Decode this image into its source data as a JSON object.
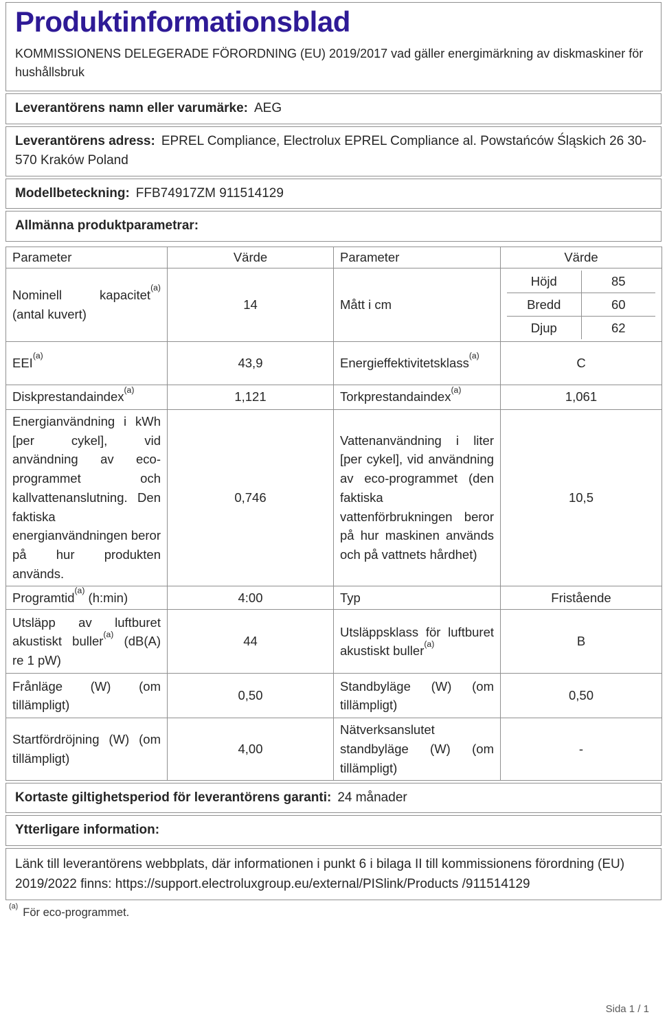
{
  "colors": {
    "title_accent": "#2e1a96",
    "body_text": "#262626",
    "table_border": "#8f8f8f",
    "footer_text": "#595959"
  },
  "header": {
    "title": "Produktinformationsblad",
    "subtitle": "KOMMISSIONENS DELEGERADE FÖRORDNING (EU) 2019/2017 vad gäller energimärkning av diskmaskiner för hushållsbruk"
  },
  "supplier": {
    "name_label": "Leverantörens namn eller varumärke:",
    "name_value": "AEG",
    "address_label": "Leverantörens adress:",
    "address_value": "EPREL Compliance, Electrolux EPREL Compliance al. Powstańców Śląskich 26 30-570 Kraków Poland",
    "model_label": "Modellbeteckning:",
    "model_value": "FFB74917ZM 911514129"
  },
  "general_params_label": "Allmänna produktparametrar:",
  "param_table": {
    "headers": [
      "Parameter",
      "Värde",
      "Parameter",
      "Värde"
    ],
    "rows": [
      {
        "p1": "Nominell kapacitet",
        "p1_sup": "(a)",
        "p1_post": " (antal kuvert)",
        "v1": "14",
        "p2": "Mått i cm",
        "dims": [
          {
            "label": "Höjd",
            "value": "85"
          },
          {
            "label": "Bredd",
            "value": "60"
          },
          {
            "label": "Djup",
            "value": "62"
          }
        ]
      },
      {
        "p1": "EEI",
        "p1_sup": "(a)",
        "v1": "43,9",
        "p2": "Energieffektivitetsklass",
        "p2_sup": "(a)",
        "v2": "C"
      },
      {
        "p1": "Diskprestandaindex",
        "p1_sup": "(a)",
        "v1": "1,121",
        "p2": "Torkprestandaindex",
        "p2_sup": "(a)",
        "v2": "1,061"
      },
      {
        "p1": "Energianvändning i kWh [per cykel], vid användning av eco-programmet och kallvattenanslutning. Den faktiska energianvändningen beror på hur produkten används.",
        "v1": "0,746",
        "p2": "Vattenanvändning i liter [per cykel], vid användning av eco-programmet (den faktiska vattenförbrukningen beror på hur maskinen används och på vattnets hårdhet)",
        "v2": "10,5"
      },
      {
        "p1": "Programtid",
        "p1_sup": "(a)",
        "p1_post": " (h:min)",
        "v1": "4:00",
        "p2": "Typ",
        "v2": "Fristående"
      },
      {
        "p1": "Utsläpp av luftburet akustiskt buller",
        "p1_sup": "(a)",
        "p1_post": " (dB(A) re 1 pW)",
        "v1": "44",
        "p2": "Utsläppsklass för luftburet akustiskt buller",
        "p2_sup": "(a)",
        "v2": "B"
      },
      {
        "p1": "Frånläge (W) (om tillämpligt)",
        "v1": "0,50",
        "p2": "Standbyläge (W) (om tillämpligt)",
        "v2": "0,50"
      },
      {
        "p1": "Startfördröjning (W) (om tillämpligt)",
        "v1": "4,00",
        "p2": "Nätverksanslutet standbyläge (W) (om tillämpligt)",
        "v2": "-"
      }
    ]
  },
  "warranty": {
    "label": "Kortaste giltighetsperiod för leverantörens garanti:",
    "value": "24 månader"
  },
  "additional_info_label": "Ytterligare information:",
  "link": {
    "text": "Länk till leverantörens webbplats, där informationen i punkt 6 i bilaga II till kommissionens förordning (EU) 2019/2022 finns:",
    "url": "https://support.electroluxgroup.eu/external/PISlink/Products /911514129"
  },
  "footnote": {
    "marker": "(a)",
    "text": "För eco-programmet."
  },
  "footer": {
    "page_label": "Sida 1 / 1"
  }
}
